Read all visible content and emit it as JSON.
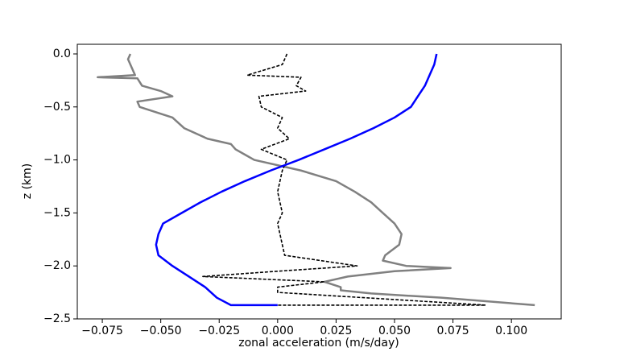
{
  "chart_data": {
    "type": "line",
    "xlabel": "zonal acceleration (m/s/day)",
    "ylabel": "z (km)",
    "xlim": [
      -0.0857,
      0.1213
    ],
    "ylim": [
      -2.5,
      0.091
    ],
    "xticks": [
      {
        "value": -0.075,
        "label": "−0.075"
      },
      {
        "value": -0.05,
        "label": "−0.050"
      },
      {
        "value": -0.025,
        "label": "−0.025"
      },
      {
        "value": 0,
        "label": "0.000"
      },
      {
        "value": 0.025,
        "label": "0.025"
      },
      {
        "value": 0.05,
        "label": "0.050"
      },
      {
        "value": 0.075,
        "label": "0.075"
      },
      {
        "value": 0.1,
        "label": "0.100"
      }
    ],
    "yticks": [
      {
        "value": 0,
        "label": "0.0"
      },
      {
        "value": -0.5,
        "label": "−0.5"
      },
      {
        "value": -1,
        "label": "−1.0"
      },
      {
        "value": -1.5,
        "label": "−1.5"
      },
      {
        "value": -2,
        "label": "−2.0"
      },
      {
        "value": -2.5,
        "label": "−2.5"
      }
    ],
    "series": [
      {
        "color": "#808080",
        "dash": false,
        "y": [
          0,
          -0.05,
          -0.1,
          -0.2,
          -0.22,
          -0.23,
          -0.3,
          -0.35,
          -0.4,
          -0.45,
          -0.5,
          -0.6,
          -0.7,
          -0.8,
          -0.85,
          -0.9,
          -0.95,
          -1.0,
          -1.1,
          -1.2,
          -1.3,
          -1.4,
          -1.5,
          -1.6,
          -1.7,
          -1.8,
          -1.9,
          -1.95,
          -2.0,
          -2.02,
          -2.05,
          -2.1,
          -2.15,
          -2.2,
          -2.23,
          -2.26,
          -2.3,
          -2.37
        ],
        "values": [
          -0.063,
          -0.064,
          -0.063,
          -0.061,
          -0.077,
          -0.06,
          -0.058,
          -0.05,
          -0.045,
          -0.06,
          -0.059,
          -0.045,
          -0.04,
          -0.03,
          -0.02,
          -0.018,
          -0.014,
          -0.01,
          0.01,
          0.025,
          0.033,
          0.04,
          0.045,
          0.05,
          0.053,
          0.052,
          0.046,
          0.045,
          0.055,
          0.074,
          0.05,
          0.03,
          0.02,
          0.027,
          0.027,
          0.04,
          0.07,
          0.11
        ]
      },
      {
        "color": "#000000",
        "dash": true,
        "y": [
          0,
          -0.1,
          -0.2,
          -0.22,
          -0.3,
          -0.35,
          -0.4,
          -0.5,
          -0.6,
          -0.7,
          -0.8,
          -0.9,
          -1.0,
          -1.1,
          -1.3,
          -1.5,
          -1.6,
          -1.8,
          -1.9,
          -2.0,
          -2.05,
          -2.1,
          -2.15,
          -2.2,
          -2.25,
          -2.37,
          -2.37
        ],
        "values": [
          0.004,
          0.002,
          -0.013,
          0.01,
          0.008,
          0.012,
          -0.008,
          -0.007,
          0.002,
          0.0,
          0.005,
          -0.007,
          0.004,
          0.002,
          0.0,
          0.002,
          0.0,
          0.002,
          0.003,
          0.034,
          0.0,
          -0.032,
          0.02,
          0.0,
          0.0,
          0.089,
          0.0
        ]
      },
      {
        "color": "#0000ff",
        "dash": false,
        "y": [
          0,
          -0.1,
          -0.2,
          -0.3,
          -0.4,
          -0.5,
          -0.6,
          -0.7,
          -0.8,
          -0.9,
          -1.0,
          -1.1,
          -1.2,
          -1.3,
          -1.4,
          -1.5,
          -1.6,
          -1.7,
          -1.8,
          -1.9,
          -2.0,
          -2.1,
          -2.2,
          -2.3,
          -2.37,
          -2.37
        ],
        "values": [
          0.068,
          0.067,
          0.065,
          0.063,
          0.06,
          0.057,
          0.05,
          0.041,
          0.031,
          0.02,
          0.009,
          -0.003,
          -0.014,
          -0.024,
          -0.033,
          -0.041,
          -0.049,
          -0.051,
          -0.052,
          -0.051,
          -0.045,
          -0.038,
          -0.031,
          -0.026,
          -0.02,
          0.0
        ]
      }
    ]
  }
}
